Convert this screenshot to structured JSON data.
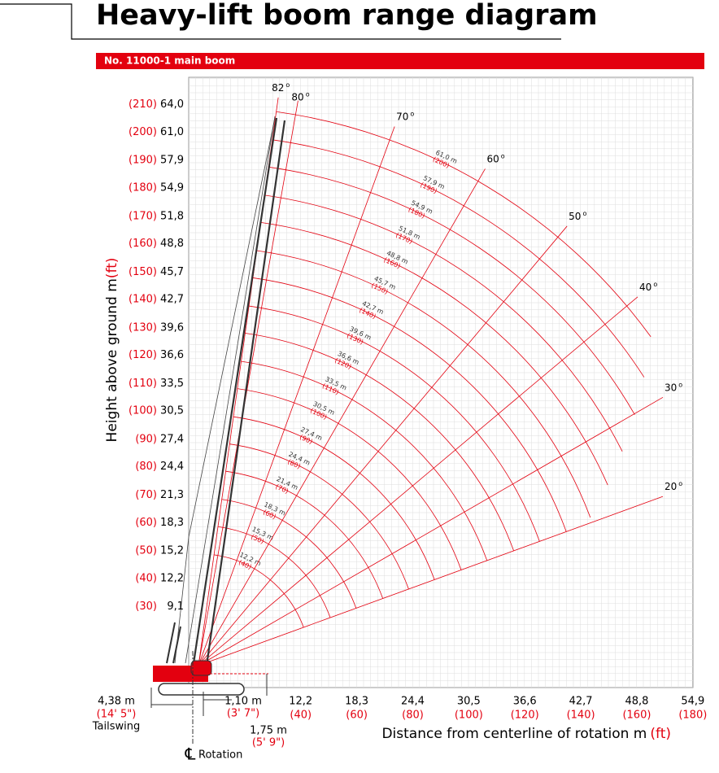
{
  "header": {
    "title": "Heavy-lift boom range diagram",
    "subtitle": "No. 11000-1 main boom"
  },
  "y_axis": {
    "title_m": "Height above ground  m",
    "title_ft": "(ft)",
    "labels": [
      {
        "m": "64,0",
        "ft": "(210)"
      },
      {
        "m": "61,0",
        "ft": "(200)"
      },
      {
        "m": "57,9",
        "ft": "(190)"
      },
      {
        "m": "54,9",
        "ft": "(180)"
      },
      {
        "m": "51,8",
        "ft": "(170)"
      },
      {
        "m": "48,8",
        "ft": "(160)"
      },
      {
        "m": "45,7",
        "ft": "(150)"
      },
      {
        "m": "42,7",
        "ft": "(140)"
      },
      {
        "m": "39,6",
        "ft": "(130)"
      },
      {
        "m": "36,6",
        "ft": "(120)"
      },
      {
        "m": "33,5",
        "ft": "(110)"
      },
      {
        "m": "30,5",
        "ft": "(100)"
      },
      {
        "m": "27,4",
        "ft": "(90)"
      },
      {
        "m": "24,4",
        "ft": "(80)"
      },
      {
        "m": "21,3",
        "ft": "(70)"
      },
      {
        "m": "18,3",
        "ft": "(60)"
      },
      {
        "m": "15,2",
        "ft": "(50)"
      },
      {
        "m": "12,2",
        "ft": "(40)"
      },
      {
        "m": "9,1",
        "ft": "(30)"
      }
    ]
  },
  "x_axis": {
    "title_m": "Distance from centerline of rotation  m",
    "title_ft": "(ft)",
    "labels": [
      {
        "m": "12,2",
        "ft": "(40)"
      },
      {
        "m": "18,3",
        "ft": "(60)"
      },
      {
        "m": "24,4",
        "ft": "(80)"
      },
      {
        "m": "30,5",
        "ft": "(100)"
      },
      {
        "m": "36,6",
        "ft": "(120)"
      },
      {
        "m": "42,7",
        "ft": "(140)"
      },
      {
        "m": "48,8",
        "ft": "(160)"
      },
      {
        "m": "54,9",
        "ft": "(180)"
      }
    ]
  },
  "angles": [
    "82",
    "80",
    "70",
    "60",
    "50",
    "40",
    "30",
    "20"
  ],
  "angle_mark": "o",
  "arcs": [
    {
      "m": "61,0 m",
      "ft": "(200)"
    },
    {
      "m": "57,9 m",
      "ft": "(190)"
    },
    {
      "m": "54,9 m",
      "ft": "(180)"
    },
    {
      "m": "51,8 m",
      "ft": "(170)"
    },
    {
      "m": "48,8 m",
      "ft": "(160)"
    },
    {
      "m": "45,7 m",
      "ft": "(150)"
    },
    {
      "m": "42,7 m",
      "ft": "(140)"
    },
    {
      "m": "39,6 m",
      "ft": "(130)"
    },
    {
      "m": "36,6 m",
      "ft": "(120)"
    },
    {
      "m": "33,5 m",
      "ft": "(110)"
    },
    {
      "m": "30,5 m",
      "ft": "(100)"
    },
    {
      "m": "27,4 m",
      "ft": "(90)"
    },
    {
      "m": "24,4 m",
      "ft": "(80)"
    },
    {
      "m": "21,4 m",
      "ft": "(70)"
    },
    {
      "m": "18,3 m",
      "ft": "(60)"
    },
    {
      "m": "15,3 m",
      "ft": "(50)"
    },
    {
      "m": "12,2 m",
      "ft": "(40)"
    }
  ],
  "dimensions": {
    "tailswing_m": "4,38 m",
    "tailswing_ft": "(14' 5\")",
    "tailswing_label": "Tailswing",
    "offset_m": "1,10 m",
    "offset_ft": "(3' 7\")",
    "pivot_m": "1,75 m",
    "pivot_ft": "(5' 9\")",
    "centerline_symbol": "℄",
    "rotation_label": "Rotation"
  }
}
